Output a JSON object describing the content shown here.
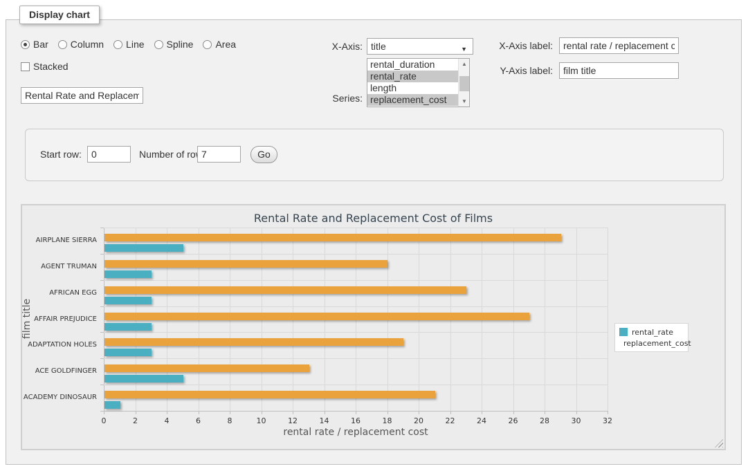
{
  "panel_title": "Display chart",
  "chart_type": {
    "options": [
      {
        "label": "Bar",
        "selected": true
      },
      {
        "label": "Column",
        "selected": false
      },
      {
        "label": "Line",
        "selected": false
      },
      {
        "label": "Spline",
        "selected": false
      },
      {
        "label": "Area",
        "selected": false
      }
    ]
  },
  "stacked_checkbox": {
    "label": "Stacked",
    "checked": false
  },
  "chart_title_input": {
    "value": "Rental Rate and Replacement Cost of Films"
  },
  "x_axis_select": {
    "label": "X-Axis:",
    "value": "title"
  },
  "series_list": {
    "label": "Series:",
    "options": [
      {
        "label": "rental_duration",
        "selected": false
      },
      {
        "label": "rental_rate",
        "selected": true
      },
      {
        "label": "length",
        "selected": false
      },
      {
        "label": "replacement_cost",
        "selected": true
      }
    ]
  },
  "x_axis_label_input": {
    "label": "X-Axis label:",
    "value": "rental rate / replacement cost"
  },
  "y_axis_label_input": {
    "label": "Y-Axis label:",
    "value": "film title"
  },
  "row_controls": {
    "start_row_label": "Start row:",
    "start_row_value": "0",
    "number_of_rows_label": "Number of rows:",
    "number_of_rows_value": "7",
    "go_button": "Go"
  },
  "chart_data": {
    "type": "bar",
    "orientation": "horizontal",
    "title": "Rental Rate and Replacement Cost of Films",
    "categories": [
      "AIRPLANE SIERRA",
      "AGENT TRUMAN",
      "AFRICAN EGG",
      "AFFAIR PREJUDICE",
      "ADAPTATION HOLES",
      "ACE GOLDFINGER",
      "ACADEMY DINOSAUR"
    ],
    "series": [
      {
        "name": "rental_rate",
        "color": "#4BAFC2",
        "values": [
          4.99,
          2.99,
          2.99,
          2.99,
          2.99,
          4.99,
          0.99
        ]
      },
      {
        "name": "replacement_cost",
        "color": "#E9A23C",
        "values": [
          28.99,
          17.99,
          22.99,
          26.99,
          18.99,
          12.99,
          20.99
        ]
      }
    ],
    "bar_draw_order_top_to_bottom": [
      "replacement_cost",
      "rental_rate"
    ],
    "xlabel": "rental rate / replacement cost",
    "ylabel": "film title",
    "xlim": [
      0,
      32
    ],
    "x_tick_step": 2,
    "grid": true,
    "legend_position": "right-inside",
    "background_color": "#ECECEC",
    "gridline_color": "#D9D9D9",
    "axis_color": "#BFBFBF"
  }
}
